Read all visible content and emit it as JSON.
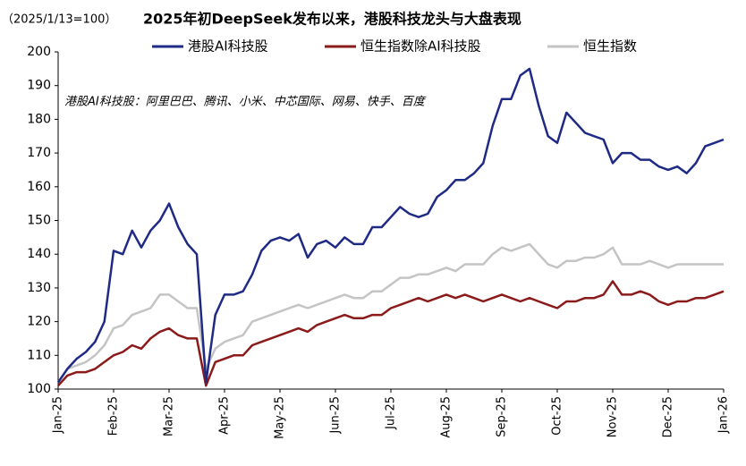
{
  "chart_data": {
    "type": "line",
    "title": "2025年初DeepSeek发布以来，港股科技龙头与大盘表现",
    "subtitle": "（2025/1/13=100）",
    "annotation": "港股AI科技股：阿里巴巴、腾讯、小米、中芯国际、网易、快手、百度",
    "categories": [
      "Jan-25",
      null,
      null,
      null,
      null,
      null,
      "Feb-25",
      null,
      null,
      null,
      null,
      null,
      "Mar-25",
      null,
      null,
      null,
      null,
      null,
      "Apr-25",
      null,
      null,
      null,
      null,
      null,
      "May-25",
      null,
      null,
      null,
      null,
      null,
      "Jun-25",
      null,
      null,
      null,
      null,
      null,
      "Jul-25",
      null,
      null,
      null,
      null,
      null,
      "Aug-25",
      null,
      null,
      null,
      null,
      null,
      "Sep-25",
      null,
      null,
      null,
      null,
      null,
      "Oct-25",
      null,
      null,
      null,
      null,
      null,
      "Nov-25",
      null,
      null,
      null,
      null,
      null,
      "Dec-25",
      null,
      null,
      null,
      null,
      null,
      "Jan-26"
    ],
    "series": [
      {
        "name": "港股AI科技股",
        "color": "#1f2a84",
        "values": [
          102,
          106,
          109,
          111,
          114,
          120,
          141,
          140,
          147,
          142,
          147,
          150,
          155,
          148,
          143,
          140,
          102,
          122,
          128,
          128,
          129,
          134,
          141,
          144,
          145,
          144,
          146,
          139,
          143,
          144,
          142,
          145,
          143,
          143,
          148,
          148,
          151,
          154,
          152,
          151,
          152,
          157,
          159,
          162,
          162,
          164,
          167,
          178,
          186,
          186,
          193,
          195,
          184,
          175,
          173,
          182,
          179,
          176,
          175,
          174,
          167,
          170,
          170,
          168,
          168,
          166,
          165,
          166,
          164,
          167,
          172,
          173,
          174
        ]
      },
      {
        "name": "恒生指数除AI科技股",
        "color": "#8b1a1a",
        "values": [
          101,
          104,
          105,
          105,
          106,
          108,
          110,
          111,
          113,
          112,
          115,
          117,
          118,
          116,
          115,
          115,
          101,
          108,
          109,
          110,
          110,
          113,
          114,
          115,
          116,
          117,
          118,
          117,
          119,
          120,
          121,
          122,
          121,
          121,
          122,
          122,
          124,
          125,
          126,
          127,
          126,
          127,
          128,
          127,
          128,
          127,
          126,
          127,
          128,
          127,
          126,
          127,
          126,
          125,
          124,
          126,
          126,
          127,
          127,
          128,
          132,
          128,
          128,
          129,
          128,
          126,
          125,
          126,
          126,
          127,
          127,
          128,
          129
        ]
      },
      {
        "name": "恒生指数",
        "color": "#c4c4c4",
        "values": [
          102,
          106,
          107,
          108,
          110,
          113,
          118,
          119,
          122,
          123,
          124,
          128,
          128,
          126,
          124,
          124,
          106,
          112,
          114,
          115,
          116,
          120,
          121,
          122,
          123,
          124,
          125,
          124,
          125,
          126,
          127,
          128,
          127,
          127,
          129,
          129,
          131,
          133,
          133,
          134,
          134,
          135,
          136,
          135,
          137,
          137,
          137,
          140,
          142,
          141,
          142,
          143,
          140,
          137,
          136,
          138,
          138,
          139,
          139,
          140,
          142,
          137,
          137,
          137,
          138,
          137,
          136,
          137,
          137,
          137,
          137,
          137,
          137
        ]
      }
    ],
    "ylim": [
      100,
      200
    ],
    "yticks": [
      100,
      110,
      120,
      130,
      140,
      150,
      160,
      170,
      180,
      190,
      200
    ],
    "grid": false
  }
}
